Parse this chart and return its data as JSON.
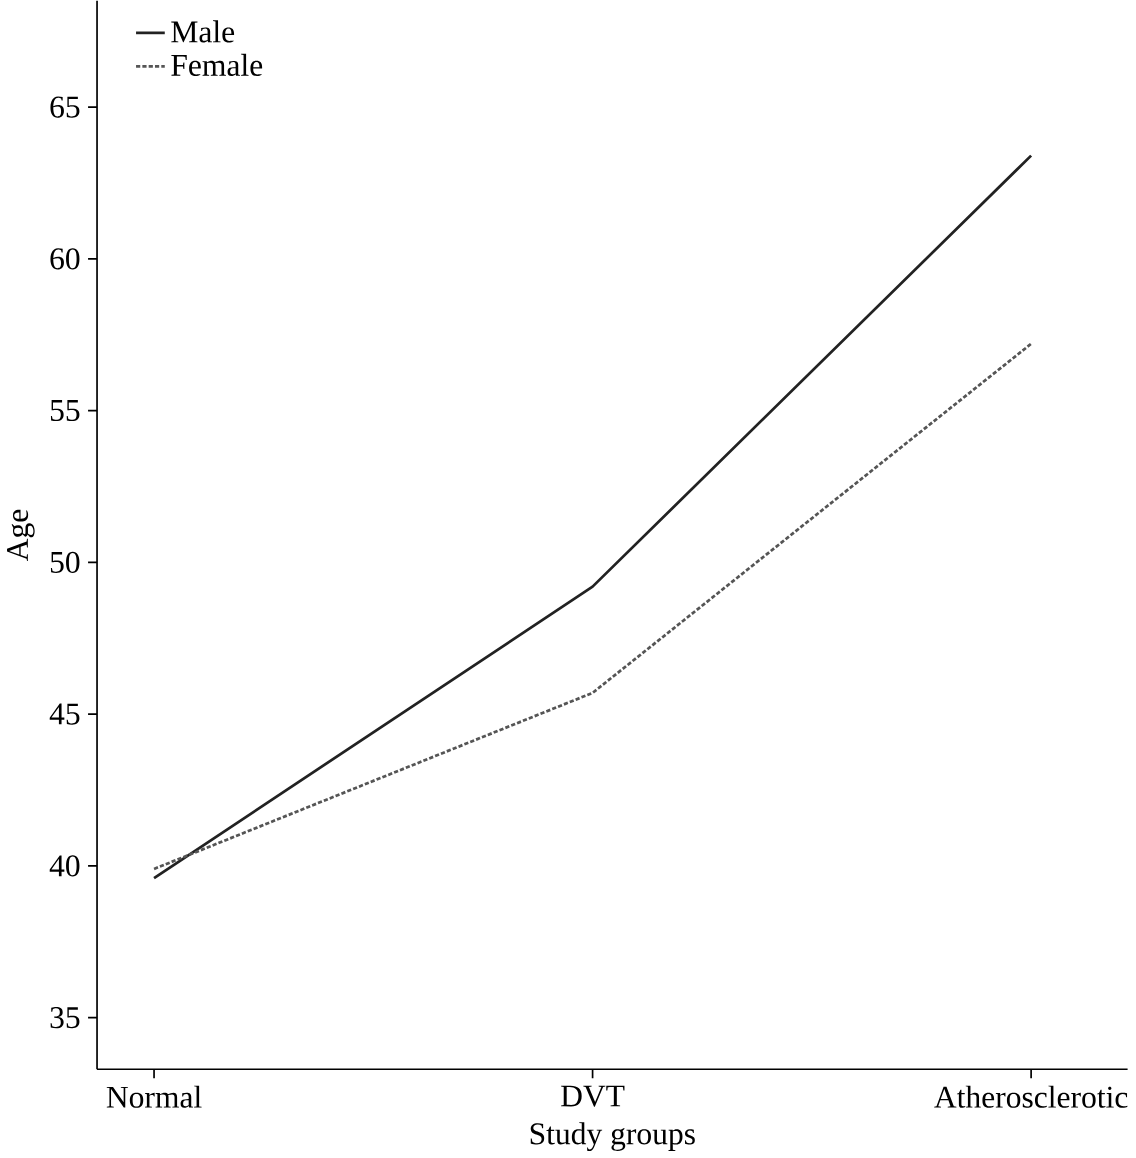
{
  "chart_data": {
    "type": "line",
    "xlabel": "Study groups",
    "ylabel": "Age",
    "categories": [
      "Normal",
      "DVT",
      "Atherosclerotic"
    ],
    "series": [
      {
        "name": "Male",
        "color": "#222222",
        "line_style": "solid",
        "values": [
          39.6,
          49.2,
          63.4
        ]
      },
      {
        "name": "Female",
        "color": "#555555",
        "line_style": "dashed",
        "values": [
          39.9,
          45.7,
          57.2
        ]
      }
    ],
    "ylim": [
      33.3,
      68.5
    ],
    "yticks": [
      35,
      40,
      45,
      50,
      55,
      60,
      65
    ],
    "legend": "top left",
    "grid": false,
    "marker": "none"
  }
}
